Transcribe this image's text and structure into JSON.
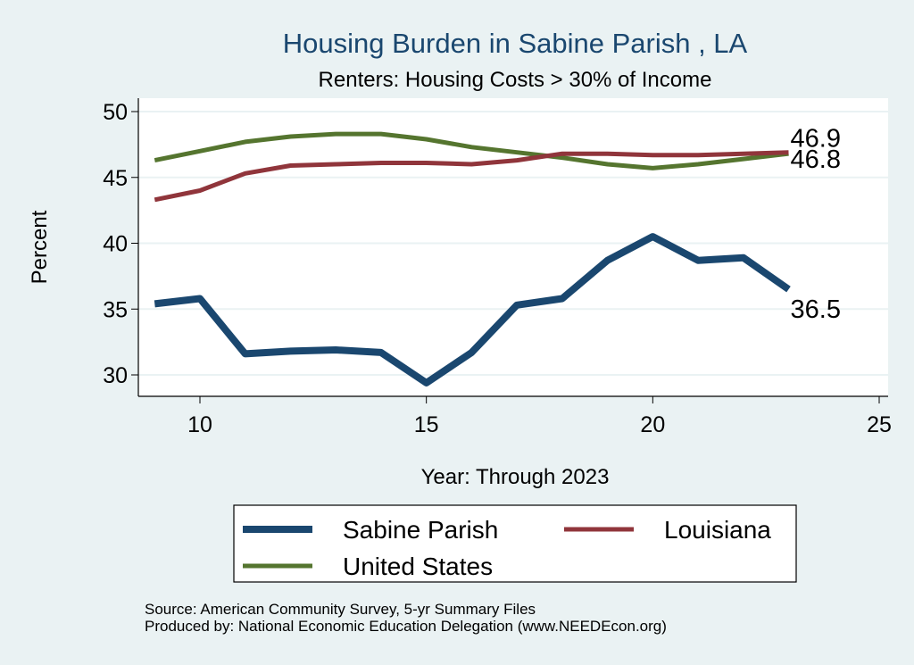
{
  "chart_data": {
    "type": "line",
    "title": "Housing Burden in Sabine Parish , LA",
    "subtitle": "Renters: Housing Costs > 30% of Income",
    "xlabel": "Year: Through 2023",
    "ylabel": "Percent",
    "xlim": [
      8.7,
      25.2
    ],
    "ylim": [
      28.4,
      51.2
    ],
    "xticks": [
      10,
      15,
      20,
      25
    ],
    "yticks": [
      30,
      35,
      40,
      45,
      50
    ],
    "grid": true,
    "legend_position": "bottom",
    "x": [
      9,
      10,
      11,
      12,
      13,
      14,
      15,
      16,
      17,
      18,
      19,
      20,
      21,
      22,
      23
    ],
    "series": [
      {
        "name": "Sabine Parish",
        "color": "#1a476f",
        "values": [
          35.4,
          35.8,
          31.6,
          31.8,
          31.9,
          31.7,
          29.4,
          31.7,
          35.3,
          35.8,
          38.7,
          40.5,
          38.7,
          38.9,
          36.5
        ],
        "end_label": "36.5"
      },
      {
        "name": "Louisiana",
        "color": "#90353b",
        "values": [
          43.3,
          44.0,
          45.3,
          45.9,
          46.0,
          46.1,
          46.1,
          46.0,
          46.3,
          46.8,
          46.8,
          46.7,
          46.7,
          46.8,
          46.9
        ],
        "end_label": "46.9"
      },
      {
        "name": "United States",
        "color": "#55752f",
        "values": [
          46.3,
          47.0,
          47.7,
          48.1,
          48.3,
          48.3,
          47.9,
          47.3,
          46.9,
          46.5,
          46.0,
          45.7,
          46.0,
          46.4,
          46.8
        ],
        "end_label": "46.8"
      }
    ],
    "notes": [
      "Source: American Community Survey, 5-yr Summary Files",
      "Produced by: National Economic Education Delegation (www.NEEDEcon.org)"
    ]
  }
}
